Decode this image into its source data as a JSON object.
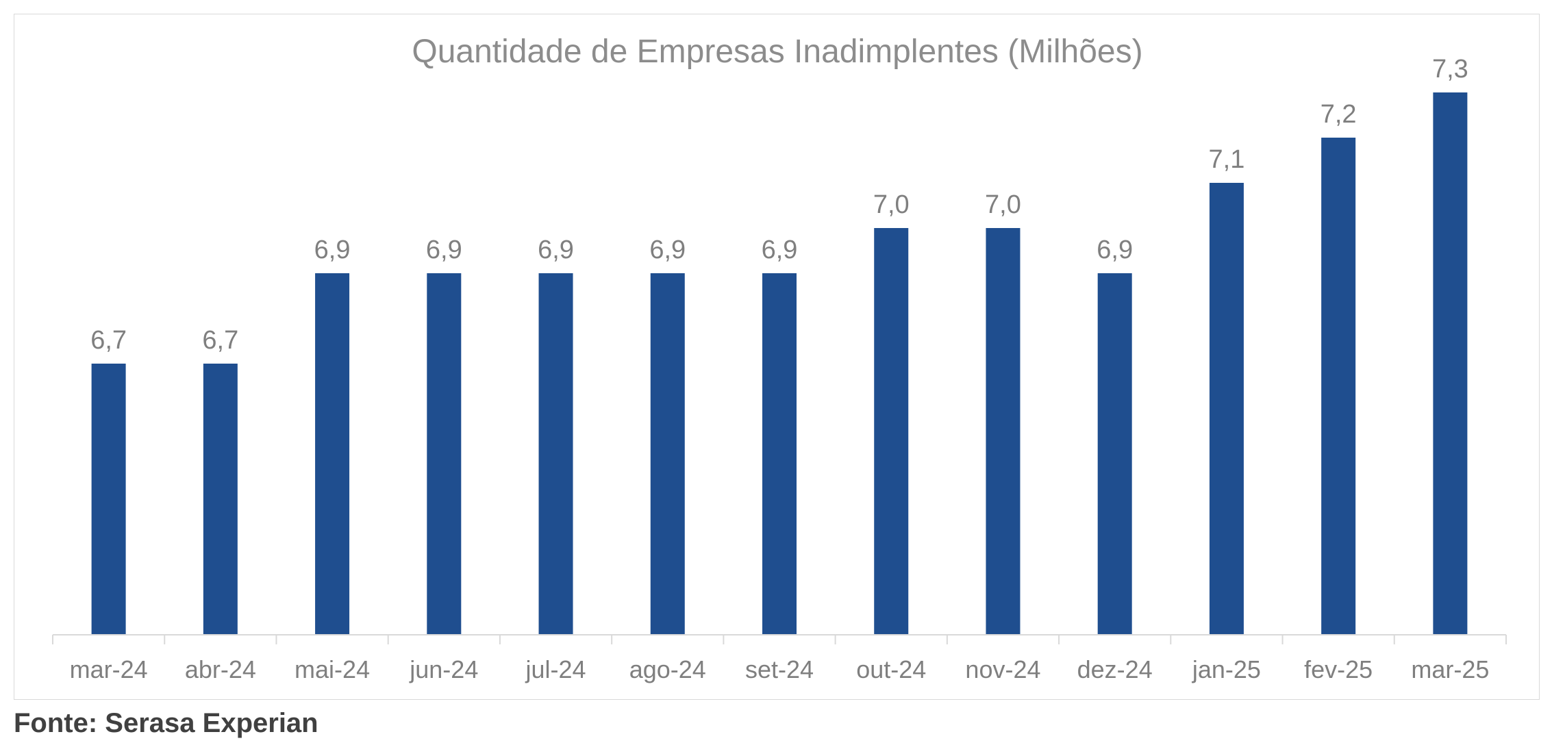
{
  "source": "Fonte: Serasa Experian",
  "colors": {
    "bar": "#1f4e8f",
    "text": "#7f7f7f",
    "title": "#8c8c8c",
    "axis": "#d9d9d9"
  },
  "chart_data": {
    "type": "bar",
    "title": "Quantidade de Empresas Inadimplentes (Milhões)",
    "xlabel": "",
    "ylabel": "",
    "categories": [
      "mar-24",
      "abr-24",
      "mai-24",
      "jun-24",
      "jul-24",
      "ago-24",
      "set-24",
      "out-24",
      "nov-24",
      "dez-24",
      "jan-25",
      "fev-25",
      "mar-25"
    ],
    "values": [
      6.7,
      6.7,
      6.9,
      6.9,
      6.9,
      6.9,
      6.9,
      7.0,
      7.0,
      6.9,
      7.1,
      7.2,
      7.3
    ],
    "data_labels": [
      "6,7",
      "6,7",
      "6,9",
      "6,9",
      "6,9",
      "6,9",
      "6,9",
      "7,0",
      "7,0",
      "6,9",
      "7,1",
      "7,2",
      "7,3"
    ],
    "ylim": [
      6.1,
      7.4
    ],
    "grid": false,
    "legend": "none"
  }
}
